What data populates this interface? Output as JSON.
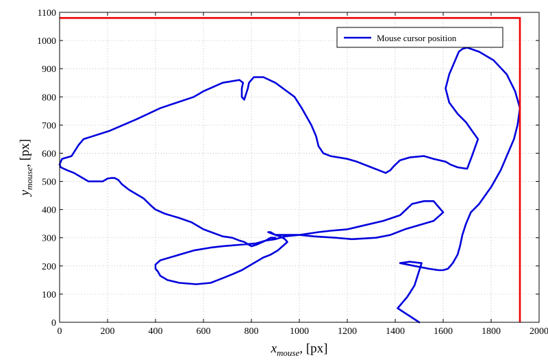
{
  "chart_data": {
    "type": "line",
    "title": "",
    "xlabel": {
      "main": "x",
      "sub": "mouse",
      "unit": ", [px]"
    },
    "ylabel": {
      "main": "y",
      "sub": "mouse",
      "unit": ", [px]"
    },
    "xlim": [
      0,
      2000
    ],
    "ylim": [
      0,
      1100
    ],
    "xticks": [
      0,
      200,
      400,
      600,
      800,
      1000,
      1200,
      1400,
      1600,
      1800,
      2000
    ],
    "yticks": [
      0,
      100,
      200,
      300,
      400,
      500,
      600,
      700,
      800,
      900,
      1000,
      1100
    ],
    "grid": true,
    "legend": {
      "placement": "top-right",
      "entries": [
        "Mouse cursor position"
      ]
    },
    "colors": {
      "trajectory": "#0000dd",
      "boundary": "#ee0000"
    },
    "boundary": {
      "x": 1920,
      "y": 1080
    },
    "series": [
      {
        "name": "Mouse cursor position",
        "x": [
          1500,
          1410,
          1450,
          1480,
          1510,
          1460,
          1420,
          1480,
          1540,
          1580,
          1600,
          1620,
          1640,
          1660,
          1670,
          1680,
          1695,
          1715,
          1750,
          1800,
          1840,
          1870,
          1895,
          1910,
          1920,
          1900,
          1865,
          1810,
          1750,
          1700,
          1680,
          1665,
          1645,
          1625,
          1610,
          1625,
          1660,
          1695,
          1720,
          1745,
          1720,
          1700,
          1660,
          1630,
          1610,
          1560,
          1520,
          1460,
          1420,
          1395,
          1380,
          1360,
          1330,
          1300,
          1240,
          1200,
          1130,
          1100,
          1080,
          1070,
          1050,
          1010,
          980,
          900,
          850,
          810,
          790,
          785,
          770,
          760,
          760,
          765,
          750,
          680,
          600,
          560,
          420,
          320,
          210,
          100,
          80,
          50,
          10,
          0,
          5,
          30,
          60,
          80,
          100,
          120,
          140,
          160,
          180,
          190,
          200,
          215,
          230,
          245,
          260,
          290,
          350,
          380,
          400,
          440,
          500,
          550,
          600,
          680,
          720,
          750,
          770,
          790,
          800,
          820,
          860,
          900,
          940,
          1000,
          1080,
          1130,
          1200,
          1250,
          1350,
          1420,
          1470,
          1520,
          1560,
          1580,
          1600,
          1560,
          1440,
          1380,
          1320,
          1220,
          1150,
          1060,
          1000,
          950,
          900,
          880,
          870,
          900,
          920,
          940,
          950,
          930,
          910,
          880,
          850,
          830,
          800,
          760,
          720,
          690,
          660,
          630,
          570,
          500,
          450,
          420,
          410,
          400,
          400,
          420,
          500,
          560,
          630,
          680,
          750,
          820,
          860,
          880,
          900
        ],
        "y": [
          0,
          50,
          90,
          130,
          210,
          215,
          210,
          200,
          190,
          185,
          185,
          190,
          210,
          240,
          270,
          310,
          350,
          390,
          420,
          480,
          540,
          600,
          650,
          700,
          760,
          820,
          880,
          930,
          960,
          975,
          970,
          960,
          920,
          880,
          830,
          780,
          740,
          710,
          680,
          650,
          590,
          545,
          550,
          560,
          570,
          580,
          590,
          585,
          575,
          555,
          540,
          530,
          540,
          550,
          570,
          580,
          590,
          600,
          625,
          660,
          700,
          760,
          800,
          850,
          870,
          870,
          850,
          830,
          790,
          800,
          830,
          850,
          860,
          850,
          820,
          800,
          760,
          720,
          680,
          650,
          630,
          590,
          580,
          560,
          550,
          540,
          530,
          520,
          510,
          500,
          500,
          500,
          500,
          505,
          510,
          512,
          512,
          505,
          490,
          470,
          440,
          415,
          400,
          385,
          370,
          355,
          330,
          305,
          300,
          290,
          285,
          275,
          270,
          275,
          290,
          295,
          305,
          310,
          320,
          325,
          330,
          340,
          360,
          380,
          420,
          430,
          430,
          410,
          390,
          360,
          330,
          310,
          300,
          295,
          300,
          305,
          310,
          310,
          310,
          320,
          320,
          310,
          305,
          295,
          285,
          270,
          255,
          240,
          230,
          220,
          205,
          185,
          170,
          160,
          150,
          140,
          135,
          140,
          150,
          165,
          180,
          190,
          205,
          220,
          240,
          255,
          265,
          270,
          275,
          280,
          290,
          300,
          300
        ]
      }
    ]
  }
}
